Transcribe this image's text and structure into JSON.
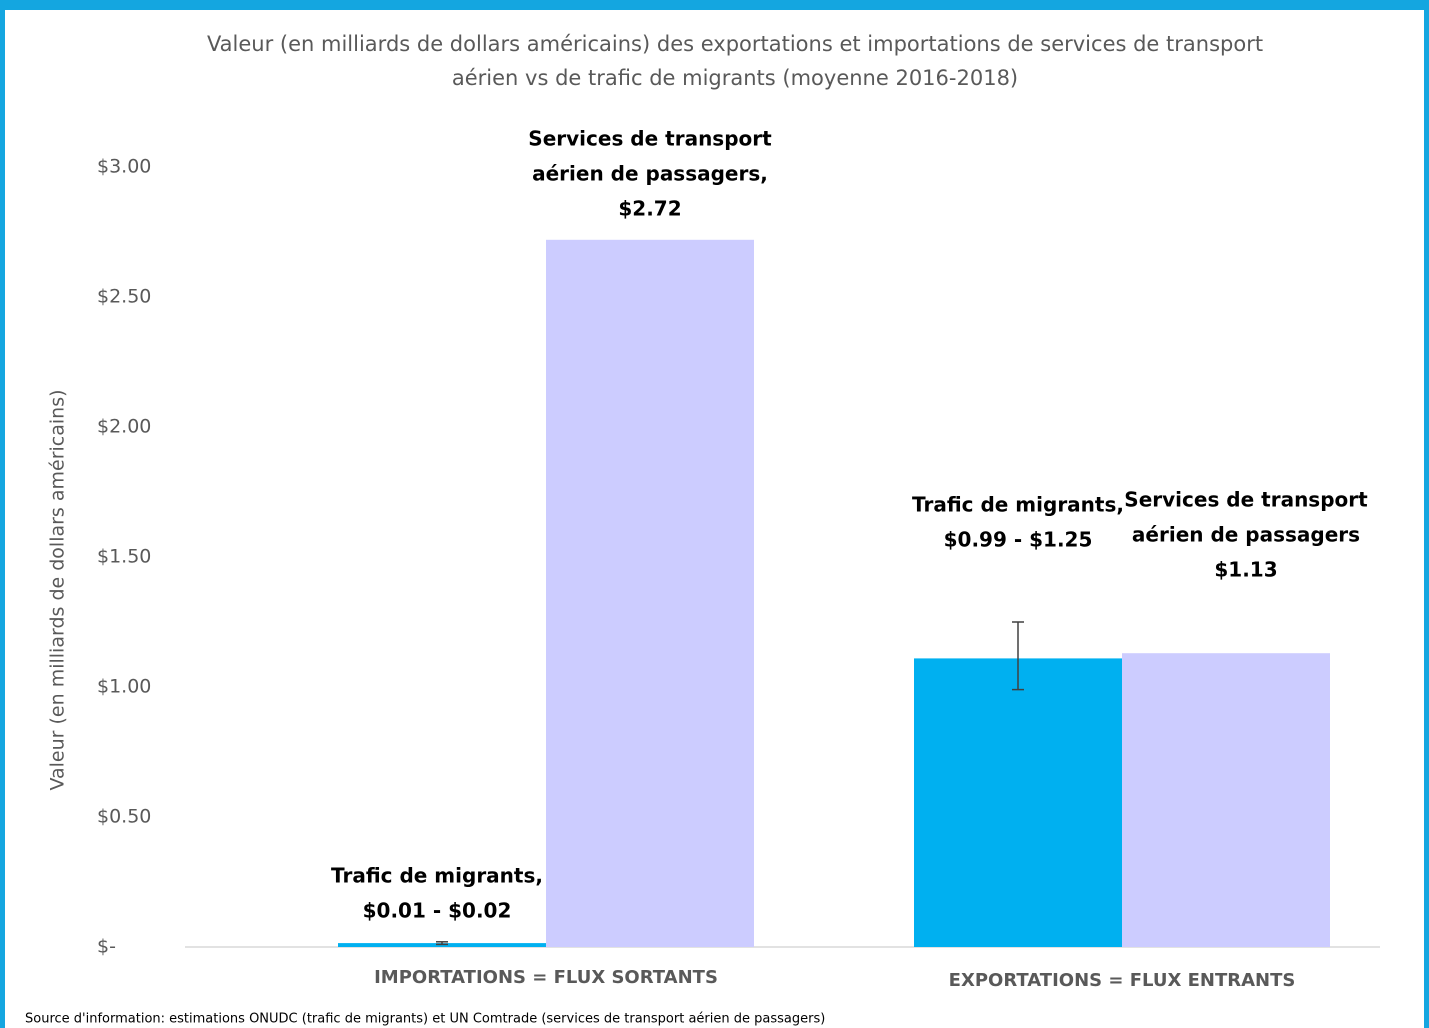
{
  "chart_data": {
    "type": "bar",
    "title": [
      "Valeur (en milliards de dollars américains) des exportations et importations de services de transport",
      "aérien vs de trafic de migrants (moyenne 2016-2018)"
    ],
    "y_label": "Valeur (en milliards de dollars américains)",
    "categories": [
      "IMPORTATIONS = FLUX SORTANTS",
      "EXPORTATIONS = FLUX ENTRANTS"
    ],
    "series": [
      {
        "color": "#00b0f0",
        "values": [
          0.015,
          1.11
        ],
        "low": [
          0.01,
          0.99
        ],
        "high": [
          0.02,
          1.25
        ],
        "label_names": [
          [
            "Trafic de migrants,"
          ],
          [
            "Trafic de migrants,"
          ]
        ],
        "value_labels": [
          "$0.01 - $0.02",
          "$0.99 - $1.25"
        ]
      },
      {
        "color": "#ccccff",
        "values": [
          2.72,
          1.13
        ],
        "label_names": [
          [
            "Services de transport",
            "aérien de passagers,"
          ],
          [
            "Services de transport",
            "aérien de passagers"
          ]
        ],
        "value_labels": [
          "$2.72",
          "$1.13"
        ]
      }
    ],
    "ylim": [
      0,
      3
    ],
    "yticks": [
      {
        "value": 0,
        "label": "$-"
      },
      {
        "value": 0.5,
        "label": "$0.50"
      },
      {
        "value": 1,
        "label": "$1.00"
      },
      {
        "value": 1.5,
        "label": "$1.50"
      },
      {
        "value": 2,
        "label": "$2.00"
      },
      {
        "value": 2.5,
        "label": "$2.50"
      },
      {
        "value": 3,
        "label": "$3.00"
      }
    ],
    "grid": false,
    "source": "Source d'information: estimations ONUDC (trafic de migrants) et UN Comtrade (services de transport aérien de passagers)"
  }
}
